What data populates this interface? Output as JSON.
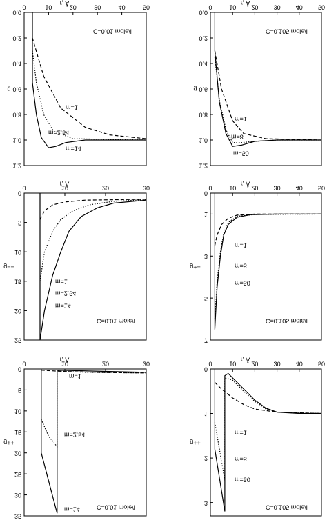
{
  "chart_data": [
    {
      "type": "line",
      "ylabel": "g++",
      "annotation": "C=0.01 mole/l",
      "xlabel": "r, Å",
      "xlim": [
        0,
        30
      ],
      "xticks": [
        0,
        10,
        20,
        30
      ],
      "ylim": [
        0,
        35
      ],
      "yticks": [
        0,
        5,
        10,
        15,
        20,
        25,
        30,
        35
      ],
      "series": [
        {
          "name": "m=1",
          "color": "#000",
          "style": "dashed",
          "x": [
            4.2,
            10,
            20,
            30
          ],
          "y": [
            0.3,
            0.6,
            0.85,
            0.95
          ]
        },
        {
          "name": "m=2.54",
          "color": "#000",
          "style": "dotted",
          "x": [
            4.2,
            6,
            8.1,
            8.1,
            15,
            30
          ],
          "y": [
            12,
            16,
            18.5,
            0.5,
            0.8,
            0.95
          ]
        },
        {
          "name": "m=14",
          "color": "#000",
          "style": "solid",
          "x": [
            4.2,
            4.2,
            8.1,
            8.1,
            30
          ],
          "y": [
            0,
            20,
            34.4,
            0.3,
            0.8
          ]
        }
      ]
    },
    {
      "type": "line",
      "ylabel": "g++",
      "annotation": "C=0.105 mole/l",
      "xlabel": "r, Å",
      "xlim": [
        0,
        50
      ],
      "xticks": [
        0,
        10,
        20,
        30,
        40,
        50
      ],
      "ylim": [
        0,
        3.3
      ],
      "yticks": [
        0,
        1,
        2,
        3
      ],
      "series": [
        {
          "name": "m=1",
          "color": "#000",
          "style": "dashed",
          "x": [
            2,
            5,
            10,
            15,
            20,
            30,
            50
          ],
          "y": [
            0.3,
            0.45,
            0.65,
            0.8,
            0.9,
            0.97,
            1
          ]
        },
        {
          "name": "m=8",
          "color": "#000",
          "style": "dotted",
          "x": [
            2,
            6.5,
            6.5,
            10,
            15,
            20,
            25,
            30,
            50
          ],
          "y": [
            1.2,
            2.5,
            0.2,
            0.25,
            0.5,
            0.73,
            0.9,
            0.97,
            1
          ]
        },
        {
          "name": "m=50",
          "color": "#000",
          "style": "solid",
          "x": [
            2,
            2,
            6.5,
            6.5,
            8,
            10,
            15,
            20,
            25,
            30,
            40,
            50
          ],
          "y": [
            0,
            1.8,
            3.2,
            0.15,
            0.1,
            0.2,
            0.45,
            0.7,
            0.88,
            0.97,
            1,
            1
          ]
        }
      ]
    },
    {
      "type": "line",
      "ylabel": "g−−",
      "annotation": "C=0.01 mole/l",
      "xlabel": "r, Å",
      "xlim": [
        0,
        30
      ],
      "xticks": [
        0,
        10,
        20,
        30
      ],
      "ylim": [
        0,
        25
      ],
      "yticks": [
        0,
        5,
        10,
        15,
        20,
        25
      ],
      "series": [
        {
          "name": "m=1",
          "color": "#000",
          "style": "dashed",
          "x": [
            3.9,
            5,
            7,
            10,
            15,
            30
          ],
          "y": [
            4.5,
            3,
            2,
            1.5,
            1.2,
            1.05
          ]
        },
        {
          "name": "m=2.54",
          "color": "#000",
          "style": "dotted",
          "x": [
            3.9,
            5,
            7,
            9,
            12,
            16,
            22,
            30
          ],
          "y": [
            15,
            10,
            6.5,
            4.5,
            3,
            2,
            1.4,
            1.1
          ]
        },
        {
          "name": "m=14",
          "color": "#000",
          "style": "solid",
          "x": [
            3.9,
            3.9,
            5,
            7,
            9,
            11,
            14,
            18,
            22,
            30
          ],
          "y": [
            0,
            25,
            20,
            14,
            10,
            6.5,
            4,
            2.5,
            1.7,
            1.2
          ]
        }
      ]
    },
    {
      "type": "line",
      "ylabel": "g+−",
      "annotation": "C=0.105 mole/l",
      "xlabel": "r, Å",
      "xlim": [
        0,
        50
      ],
      "xticks": [
        0,
        10,
        20,
        30,
        40,
        50
      ],
      "ylim": [
        0,
        7
      ],
      "yticks": [
        0,
        1,
        3,
        5,
        7
      ],
      "series": [
        {
          "name": "m=1",
          "color": "#000",
          "style": "dashed",
          "x": [
            2,
            3,
            5,
            8,
            12,
            20,
            50
          ],
          "y": [
            2.5,
            2,
            1.5,
            1.2,
            1.05,
            1,
            1
          ]
        },
        {
          "name": "m=8",
          "color": "#000",
          "style": "dotted",
          "x": [
            2,
            3,
            4.5,
            6,
            8,
            12,
            20,
            50
          ],
          "y": [
            6,
            4.2,
            2.8,
            1.9,
            1.4,
            1.1,
            1.02,
            1
          ]
        },
        {
          "name": "m=50",
          "color": "#000",
          "style": "solid",
          "x": [
            2,
            2,
            3,
            4.5,
            6,
            8,
            12,
            18,
            30,
            50
          ],
          "y": [
            0,
            6.5,
            4.5,
            3,
            2,
            1.5,
            1.15,
            1.03,
            1,
            1
          ]
        }
      ]
    },
    {
      "type": "line",
      "ylabel": "g",
      "annotation": "C=0.01 mole/l",
      "xlabel": "r, Å",
      "xlim": [
        0,
        50
      ],
      "xticks": [
        0,
        10,
        20,
        30,
        40,
        50
      ],
      "ylim": [
        0,
        1.2
      ],
      "yticks": [
        {
          "value": 0,
          "label": "0.0"
        },
        0.2,
        0.4,
        0.6,
        0.8,
        {
          "value": 1,
          "label": "1.0"
        },
        1.2
      ],
      "series": [
        {
          "name": "m=1",
          "color": "#000",
          "style": "dashed",
          "x": [
            3.4,
            8,
            15,
            25,
            35,
            50
          ],
          "y": [
            0.2,
            0.5,
            0.75,
            0.9,
            0.96,
            0.99
          ]
        },
        {
          "name": "m=2.54",
          "color": "#000",
          "style": "dotted",
          "x": [
            3.4,
            5,
            8,
            12,
            20,
            50
          ],
          "y": [
            0.3,
            0.55,
            0.8,
            0.93,
            0.99,
            1
          ]
        },
        {
          "name": "m=14",
          "color": "#000",
          "style": "solid",
          "x": [
            3.4,
            3.4,
            5,
            7,
            10,
            13,
            17,
            25,
            50
          ],
          "y": [
            0,
            0.55,
            0.8,
            0.98,
            1.06,
            1.05,
            1.02,
            1,
            1
          ]
        }
      ]
    },
    {
      "type": "line",
      "ylabel": "g",
      "annotation": "C=0.105 mole/l",
      "xlabel": "r, Å",
      "xlim": [
        0,
        50
      ],
      "xticks": [
        0,
        10,
        20,
        30,
        40,
        50
      ],
      "ylim": [
        0,
        1.2
      ],
      "yticks": [
        {
          "value": 0,
          "label": "0.0"
        },
        0.2,
        0.4,
        0.6,
        0.8,
        {
          "value": 1,
          "label": "1.0"
        },
        1.2
      ],
      "series": [
        {
          "name": "m=1",
          "color": "#000",
          "style": "dashed",
          "x": [
            2,
            5,
            10,
            15,
            25,
            50
          ],
          "y": [
            0.3,
            0.6,
            0.85,
            0.95,
            0.99,
            1
          ]
        },
        {
          "name": "m=8",
          "color": "#000",
          "style": "dotted",
          "x": [
            2,
            4,
            7,
            10,
            14,
            20,
            30,
            50
          ],
          "y": [
            0.35,
            0.68,
            0.92,
            1.02,
            1.02,
            1.01,
            1,
            1
          ]
        },
        {
          "name": "m=50",
          "color": "#000",
          "style": "solid",
          "x": [
            2,
            2,
            4,
            7,
            10,
            14,
            20,
            30,
            50
          ],
          "y": [
            0,
            0.3,
            0.7,
            0.95,
            1.05,
            1.04,
            1.01,
            1,
            1
          ]
        }
      ]
    }
  ]
}
